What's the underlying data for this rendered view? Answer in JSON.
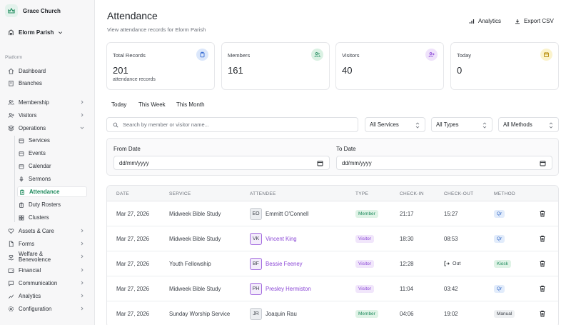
{
  "brand": {
    "name": "Grace Church"
  },
  "parish": {
    "name": "Elorm Parish"
  },
  "sidebar": {
    "section": "Platform",
    "items": [
      {
        "label": "Dashboard",
        "icon": "home-icon"
      },
      {
        "label": "Branches",
        "icon": "building-icon"
      },
      {
        "label": "Membership",
        "icon": "users-icon"
      },
      {
        "label": "Visitors",
        "icon": "user-plus-icon"
      },
      {
        "label": "Operations",
        "icon": "layers-icon"
      }
    ],
    "operations": [
      {
        "label": "Services",
        "icon": "calendar-icon"
      },
      {
        "label": "Events",
        "icon": "calendar-icon"
      },
      {
        "label": "Calendar",
        "icon": "calendar-icon"
      },
      {
        "label": "Sermons",
        "icon": "mic-icon"
      },
      {
        "label": "Attendance",
        "icon": "clipboard-icon",
        "active": true
      },
      {
        "label": "Duty Rosters",
        "icon": "clipboard-icon"
      },
      {
        "label": "Clusters",
        "icon": "grid-icon"
      }
    ],
    "bottom": [
      {
        "label": "Assets & Care",
        "icon": "heart-icon"
      },
      {
        "label": "Forms",
        "icon": "file-icon"
      },
      {
        "label": "Welfare & Benevolence",
        "icon": "heart-hand-icon"
      },
      {
        "label": "Financial",
        "icon": "wallet-icon"
      },
      {
        "label": "Communication",
        "icon": "message-icon"
      },
      {
        "label": "Analytics",
        "icon": "chart-icon"
      },
      {
        "label": "Configuration",
        "icon": "gear-icon"
      }
    ]
  },
  "header": {
    "title": "Attendance",
    "subtitle": "View attendance records for Elorm Parish",
    "analytics_label": "Analytics",
    "export_label": "Export CSV"
  },
  "stats": [
    {
      "label": "Total Records",
      "value": "201",
      "note": "attendance records",
      "icon": "clipboard-icon",
      "color": "#dbe7fb",
      "stroke": "#3b6fd4"
    },
    {
      "label": "Members",
      "value": "161",
      "note": "",
      "icon": "users-icon",
      "color": "#daf1e3",
      "stroke": "#1d8a5c"
    },
    {
      "label": "Visitors",
      "value": "40",
      "note": "",
      "icon": "user-plus-icon",
      "color": "#efe2fb",
      "stroke": "#8a46d6"
    },
    {
      "label": "Today",
      "value": "0",
      "note": "",
      "icon": "calendar-icon",
      "color": "#fbf3cc",
      "stroke": "#b58a07"
    }
  ],
  "period_tabs": [
    "Today",
    "This Week",
    "This Month"
  ],
  "filters": {
    "search_placeholder": "Search by member or visitor name...",
    "services": "All Services",
    "types": "All Types",
    "methods": "All Methods"
  },
  "dates": {
    "from_label": "From Date",
    "to_label": "To Date",
    "from_value": "dd/mm/yyyy",
    "to_value": "dd/mm/yyyy"
  },
  "table": {
    "columns": [
      "DATE",
      "SERVICE",
      "ATTENDEE",
      "TYPE",
      "CHECK-IN",
      "CHECK-OUT",
      "METHOD"
    ],
    "rows": [
      {
        "date": "Mar 27, 2026",
        "service": "Midweek Bible Study",
        "initials": "EO",
        "name": "Emmitt O'Connell",
        "type": "Member",
        "check_in": "21:17",
        "check_out": "15:27",
        "method": "Qr"
      },
      {
        "date": "Mar 27, 2026",
        "service": "Midweek Bible Study",
        "initials": "VK",
        "name": "Vincent King",
        "type": "Visitor",
        "check_in": "18:30",
        "check_out": "08:53",
        "method": "Qr"
      },
      {
        "date": "Mar 27, 2026",
        "service": "Youth Fellowship",
        "initials": "BF",
        "name": "Bessie Feeney",
        "type": "Visitor",
        "check_in": "12:28",
        "check_out": "Out",
        "method": "Kiosk"
      },
      {
        "date": "Mar 27, 2026",
        "service": "Midweek Bible Study",
        "initials": "PH",
        "name": "Presley Hermiston",
        "type": "Visitor",
        "check_in": "11:04",
        "check_out": "03:42",
        "method": "Qr"
      },
      {
        "date": "Mar 27, 2026",
        "service": "Sunday Worship Service",
        "initials": "JR",
        "name": "Joaquin Rau",
        "type": "Member",
        "check_in": "04:06",
        "check_out": "19:02",
        "method": "Manual"
      }
    ]
  },
  "accent": "#1d8a5c"
}
